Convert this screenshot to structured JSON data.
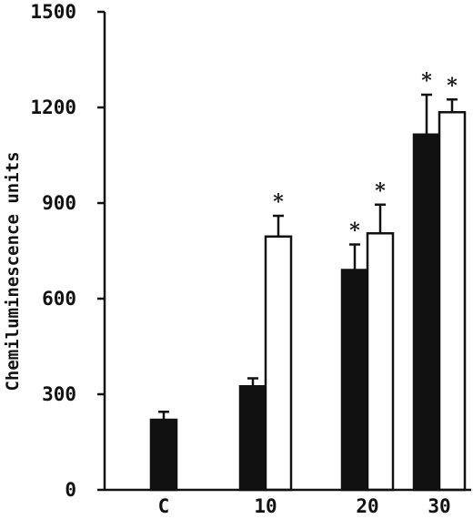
{
  "chart_data": {
    "type": "bar",
    "title": "",
    "xlabel": "",
    "ylabel": "Chemiluminescence units",
    "ylim": [
      0,
      1500
    ],
    "yticks": [
      0,
      300,
      600,
      900,
      1200,
      1500
    ],
    "ytick_labels": [
      "0",
      "300",
      "600",
      "900",
      "1200",
      "1500"
    ],
    "categories": [
      "C",
      "10",
      "20",
      "30"
    ],
    "grid": false,
    "legend": "none",
    "series": [
      {
        "fill": "#111111",
        "values": [
          220,
          325,
          690,
          1115
        ],
        "errors": [
          25,
          25,
          80,
          125
        ],
        "significant": [
          false,
          false,
          true,
          true
        ]
      },
      {
        "fill": "#ffffff",
        "values": [
          null,
          795,
          805,
          1185
        ],
        "errors": [
          null,
          65,
          90,
          40
        ],
        "significant": [
          false,
          true,
          true,
          true
        ]
      }
    ],
    "significance_marker": "*"
  }
}
